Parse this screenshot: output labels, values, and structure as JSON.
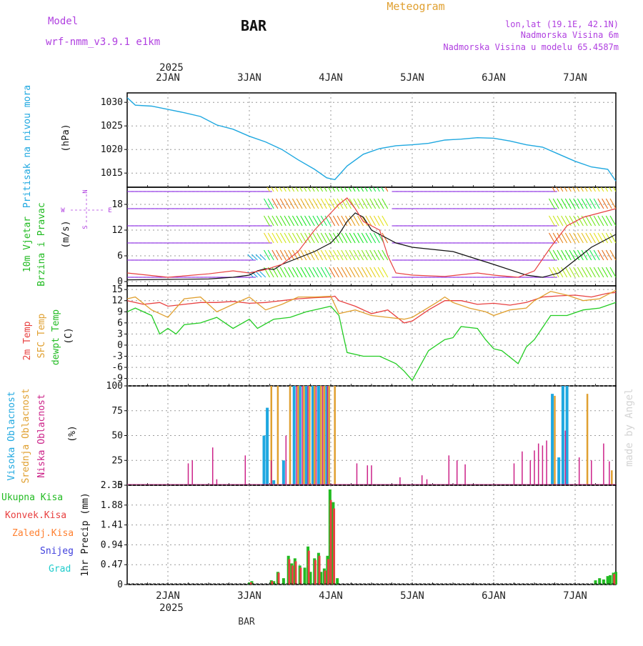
{
  "header": {
    "model_label": "Model",
    "model_name": "wrf-nmm_v3.9.1  e1km",
    "station": "BAR",
    "meteogram_title": "Meteogram",
    "lonlat": "lon,lat (19.1E, 42.1N)",
    "elevation": "Nadmorska Visina 6m",
    "model_elevation": "Nadmorska Visina u modelu 65.4587m",
    "footer_station": "BAR",
    "watermark": "made by Angel"
  },
  "colors": {
    "pressure": "#1fa8e0",
    "t2m": "#e84040",
    "sfc": "#e0a030",
    "dewpt": "#22cc22",
    "high_cloud": "#1fa8e0",
    "mid_cloud": "#e0a030",
    "low_cloud": "#cc2288",
    "total_precip": "#22bb22",
    "conv_precip": "#e84040",
    "frozen": "#ff8030",
    "snow": "#4040dd",
    "hail": "#20cccc",
    "purple_text": "#b040e0",
    "grid": "#999999"
  },
  "time_axis": {
    "year_label": "2025",
    "day_labels": [
      "2JAN",
      "3JAN",
      "4JAN",
      "5JAN",
      "6JAN",
      "7JAN"
    ]
  },
  "chart_data": [
    {
      "type": "line",
      "name": "pressure",
      "ylabel_lines": [
        "Pritisak na nivou mora",
        "(hPa)"
      ],
      "yticks": [
        "1015",
        "1020",
        "1025",
        "1030"
      ],
      "ylim": [
        1012,
        1032
      ],
      "x_days": [
        1.5,
        1.6,
        1.8,
        2.0,
        2.2,
        2.4,
        2.6,
        2.8,
        3.0,
        3.2,
        3.4,
        3.6,
        3.8,
        3.95,
        4.05,
        4.2,
        4.4,
        4.6,
        4.8,
        5.0,
        5.2,
        5.4,
        5.6,
        5.8,
        6.0,
        6.2,
        6.4,
        6.6,
        6.8,
        7.0,
        7.2,
        7.4,
        7.5
      ],
      "values": [
        1031,
        1029.4,
        1029.2,
        1028.5,
        1027.8,
        1027.0,
        1025.2,
        1024.3,
        1022.8,
        1021.6,
        1020.0,
        1017.8,
        1015.8,
        1014.0,
        1013.6,
        1016.5,
        1019.0,
        1020.2,
        1020.8,
        1021.0,
        1021.3,
        1022.0,
        1022.2,
        1022.5,
        1022.4,
        1021.8,
        1021.0,
        1020.5,
        1019.0,
        1017.5,
        1016.3,
        1015.8,
        1013.3
      ]
    },
    {
      "type": "line",
      "name": "wind",
      "ylabel_lines": [
        "10m Vjetar",
        "Brzina i Pravac",
        "(m/s)"
      ],
      "compass_labels": [
        "N",
        "S",
        "W",
        "E"
      ],
      "yticks": [
        "0",
        "6",
        "12",
        "18"
      ],
      "ylim": [
        -1,
        22
      ],
      "series": [
        {
          "name": "speed_black",
          "x_days": [
            1.5,
            2.0,
            2.5,
            2.8,
            3.0,
            3.1,
            3.2,
            3.3,
            3.4,
            3.6,
            3.8,
            3.9,
            4.0,
            4.1,
            4.2,
            4.3,
            4.4,
            4.5,
            4.6,
            4.8,
            5.0,
            5.5,
            6.0,
            6.4,
            6.6,
            6.8,
            7.0,
            7.2,
            7.4,
            7.5
          ],
          "values": [
            0.4,
            0.5,
            0.6,
            1.0,
            1.5,
            2.5,
            3.0,
            2.8,
            4.0,
            5.5,
            7.0,
            8.0,
            9.0,
            11.0,
            14.0,
            16.0,
            15.0,
            12.0,
            11.0,
            9.0,
            8.0,
            7.0,
            4.0,
            1.5,
            1.0,
            2.0,
            5.0,
            8.0,
            10.0,
            11.0
          ]
        },
        {
          "name": "gust_red",
          "x_days": [
            1.5,
            2.0,
            2.5,
            2.8,
            3.0,
            3.2,
            3.4,
            3.6,
            3.8,
            4.0,
            4.1,
            4.2,
            4.3,
            4.4,
            4.5,
            4.6,
            4.7,
            4.8,
            5.0,
            5.4,
            5.8,
            6.0,
            6.3,
            6.5,
            6.7,
            6.9,
            7.1,
            7.3,
            7.5
          ],
          "values": [
            2.0,
            1.0,
            1.8,
            2.5,
            2.0,
            2.8,
            4.0,
            7.0,
            12.0,
            16.0,
            18.0,
            19.5,
            17.0,
            14.0,
            13.0,
            12.0,
            6.0,
            2.0,
            1.5,
            1.2,
            2.0,
            1.5,
            1.0,
            2.5,
            8.0,
            13.0,
            15.0,
            16.0,
            17.0
          ]
        }
      ]
    },
    {
      "type": "line",
      "name": "temperature",
      "ylabel_lines": [
        "2m Temp",
        "SFC Temp",
        "dewpt Temp",
        "(C)"
      ],
      "yticks": [
        "15",
        "12",
        "9",
        "6",
        "3",
        "0",
        "-3",
        "-6",
        "-9"
      ],
      "ylim": [
        -11,
        16
      ],
      "series": [
        {
          "name": "t2m",
          "x_days": [
            1.5,
            1.7,
            1.9,
            2.0,
            2.2,
            2.4,
            2.6,
            2.8,
            3.0,
            3.2,
            3.4,
            3.6,
            3.8,
            4.0,
            4.05,
            4.1,
            4.3,
            4.5,
            4.7,
            4.9,
            5.0,
            5.2,
            5.4,
            5.6,
            5.8,
            6.0,
            6.2,
            6.4,
            6.6,
            6.8,
            7.0,
            7.2,
            7.4,
            7.5
          ],
          "values": [
            12.0,
            11.0,
            11.5,
            10.5,
            11.0,
            11.5,
            11.5,
            11.8,
            11.3,
            11.5,
            12.0,
            12.5,
            12.8,
            13.0,
            13.2,
            12.0,
            10.5,
            8.5,
            9.5,
            6.0,
            6.5,
            9.5,
            12.0,
            12.0,
            11.0,
            11.3,
            10.8,
            11.5,
            13.0,
            13.3,
            13.5,
            13.0,
            14.0,
            14.2
          ]
        },
        {
          "name": "sfc",
          "x_days": [
            1.5,
            1.6,
            1.8,
            2.0,
            2.2,
            2.4,
            2.6,
            2.8,
            3.0,
            3.2,
            3.4,
            3.6,
            3.8,
            4.0,
            4.1,
            4.3,
            4.5,
            4.7,
            4.9,
            5.0,
            5.3,
            5.4,
            5.5,
            5.7,
            5.9,
            6.0,
            6.2,
            6.4,
            6.5,
            6.7,
            6.9,
            7.1,
            7.3,
            7.5
          ],
          "values": [
            12.5,
            13.0,
            9.5,
            7.5,
            12.5,
            13.0,
            9.0,
            11.0,
            13.0,
            9.5,
            11.0,
            13.0,
            13.0,
            13.2,
            8.5,
            9.5,
            8.0,
            7.5,
            7.0,
            7.5,
            11.5,
            13.0,
            11.5,
            10.0,
            9.0,
            8.0,
            9.5,
            10.0,
            12.0,
            14.5,
            13.5,
            12.0,
            12.5,
            14.8
          ]
        },
        {
          "name": "dewpt",
          "x_days": [
            1.5,
            1.6,
            1.8,
            1.9,
            2.0,
            2.1,
            2.2,
            2.4,
            2.6,
            2.8,
            3.0,
            3.1,
            3.3,
            3.5,
            3.7,
            3.9,
            4.0,
            4.1,
            4.2,
            4.4,
            4.6,
            4.8,
            4.9,
            5.0,
            5.2,
            5.4,
            5.5,
            5.6,
            5.8,
            5.9,
            6.0,
            6.1,
            6.3,
            6.4,
            6.5,
            6.7,
            6.9,
            7.1,
            7.3,
            7.5
          ],
          "values": [
            9.0,
            10.0,
            8.0,
            3.0,
            4.5,
            3.0,
            5.5,
            6.0,
            7.5,
            4.5,
            7.0,
            4.5,
            7.0,
            7.5,
            9.0,
            10.0,
            10.5,
            8.0,
            -2.0,
            -3.0,
            -3.0,
            -5.0,
            -7.0,
            -9.5,
            -1.5,
            1.5,
            2.0,
            5.0,
            4.5,
            1.5,
            -1.0,
            -1.5,
            -5.0,
            -0.5,
            1.5,
            8.0,
            8.0,
            9.5,
            10.0,
            11.5
          ]
        }
      ]
    },
    {
      "type": "bar",
      "name": "clouds",
      "ylabel_lines": [
        "Visoka Oblacnost",
        "Srednja Oblacnost",
        "Niska Oblacnost",
        "(%)"
      ],
      "yticks": [
        "0",
        "25",
        "50",
        "75",
        "100"
      ],
      "ylim": [
        0,
        100
      ],
      "series": [
        {
          "name": "high",
          "x_days": [
            3.18,
            3.22,
            3.3,
            3.42,
            3.55,
            3.62,
            3.7,
            3.78,
            3.85,
            3.95,
            6.72,
            6.8,
            6.85,
            6.9
          ],
          "values": [
            50,
            78,
            5,
            25,
            100,
            100,
            100,
            100,
            100,
            100,
            92,
            28,
            100,
            100
          ]
        },
        {
          "name": "mid",
          "x_days": [
            3.27,
            3.35,
            3.5,
            3.6,
            3.67,
            3.74,
            3.8,
            3.88,
            3.92,
            3.98,
            4.05,
            6.75,
            7.15,
            7.45
          ],
          "values": [
            100,
            100,
            100,
            100,
            100,
            100,
            100,
            100,
            100,
            100,
            100,
            90,
            92,
            15
          ]
        },
        {
          "name": "low",
          "x_days": [
            2.25,
            2.3,
            2.55,
            2.6,
            2.95,
            3.27,
            3.45,
            3.58,
            3.65,
            3.72,
            3.82,
            3.9,
            3.96,
            4.32,
            4.45,
            4.5,
            4.85,
            5.12,
            5.18,
            5.45,
            5.55,
            5.65,
            6.25,
            6.35,
            6.45,
            6.5,
            6.55,
            6.6,
            6.65,
            6.88,
            7.05,
            7.2,
            7.35,
            7.42
          ],
          "values": [
            22,
            25,
            38,
            6,
            30,
            25,
            50,
            100,
            100,
            100,
            100,
            100,
            100,
            22,
            20,
            20,
            8,
            10,
            6,
            30,
            25,
            21,
            22,
            34,
            25,
            35,
            42,
            40,
            45,
            55,
            28,
            25,
            42,
            24
          ]
        }
      ]
    },
    {
      "type": "bar",
      "name": "precip",
      "ylabel_lines": [
        "1hr Precip (mm)"
      ],
      "legend": [
        "Ukupna Kisa",
        "Konvek.Kisa",
        "Zaledj.Kisa",
        "Snijeg",
        "Grad"
      ],
      "yticks": [
        "0",
        "0.47",
        "0.94",
        "1.41",
        "1.88",
        "2.35"
      ],
      "ylim": [
        0,
        2.35
      ],
      "series": [
        {
          "name": "Ukupna Kisa",
          "x_days": [
            3.0,
            3.03,
            3.27,
            3.3,
            3.35,
            3.42,
            3.48,
            3.52,
            3.56,
            3.62,
            3.68,
            3.72,
            3.75,
            3.8,
            3.85,
            3.88,
            3.92,
            3.96,
            3.99,
            4.03,
            4.08,
            7.25,
            7.3,
            7.35,
            7.4,
            7.43,
            7.47,
            7.5
          ],
          "values": [
            0.05,
            0.08,
            0.1,
            0.08,
            0.3,
            0.15,
            0.68,
            0.5,
            0.62,
            0.45,
            0.4,
            0.9,
            0.3,
            0.62,
            0.75,
            0.3,
            0.38,
            0.68,
            2.25,
            1.95,
            0.15,
            0.1,
            0.15,
            0.12,
            0.2,
            0.22,
            0.28,
            0.3
          ]
        },
        {
          "name": "Konvek.Kisa",
          "x_days": [
            3.02,
            3.28,
            3.36,
            3.49,
            3.53,
            3.57,
            3.63,
            3.73,
            3.81,
            3.86,
            3.93,
            3.97,
            4.0,
            4.04,
            7.48
          ],
          "values": [
            0.05,
            0.08,
            0.28,
            0.6,
            0.45,
            0.55,
            0.4,
            0.8,
            0.58,
            0.68,
            0.33,
            0.6,
            2.0,
            1.8,
            0.25
          ]
        }
      ]
    }
  ]
}
